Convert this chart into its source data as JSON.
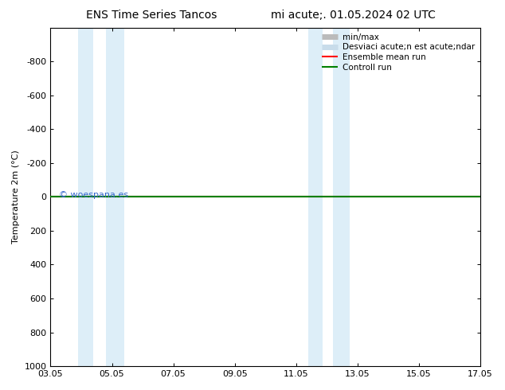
{
  "title_left": "ENS Time Series Tancos",
  "title_right": "mi acute;. 01.05.2024 02 UTC",
  "ylabel": "Temperature 2m (°C)",
  "x_ticks": [
    "03.05",
    "05.05",
    "07.05",
    "09.05",
    "11.05",
    "13.05",
    "15.05",
    "17.05"
  ],
  "x_tick_positions": [
    3,
    5,
    7,
    9,
    11,
    13,
    15,
    17
  ],
  "xlim": [
    3,
    17
  ],
  "ylim_bottom": -1000,
  "ylim_top": 1000,
  "y_ticks": [
    -800,
    -600,
    -400,
    -200,
    0,
    200,
    400,
    600,
    800,
    1000
  ],
  "shaded_regions": [
    {
      "x_start": 3.9,
      "x_end": 4.4,
      "color": "#ddeef8"
    },
    {
      "x_start": 4.8,
      "x_end": 5.4,
      "color": "#ddeef8"
    },
    {
      "x_start": 11.4,
      "x_end": 11.85,
      "color": "#ddeef8"
    },
    {
      "x_start": 12.2,
      "x_end": 12.75,
      "color": "#ddeef8"
    }
  ],
  "line_y": 0,
  "watermark": "© woespana.es",
  "watermark_color": "#3366cc",
  "background_color": "#ffffff",
  "plot_bg_color": "#ffffff",
  "legend_entries": [
    {
      "label": "min/max",
      "color": "#bbbbbb",
      "lw": 5
    },
    {
      "label": "Desviaci acute;n est acute;ndar",
      "color": "#c8dcea",
      "lw": 5
    },
    {
      "label": "Ensemble mean run",
      "color": "red",
      "lw": 1.5
    },
    {
      "label": "Controll run",
      "color": "green",
      "lw": 1.5
    }
  ],
  "title_fontsize": 10,
  "axis_fontsize": 8,
  "legend_fontsize": 7.5
}
